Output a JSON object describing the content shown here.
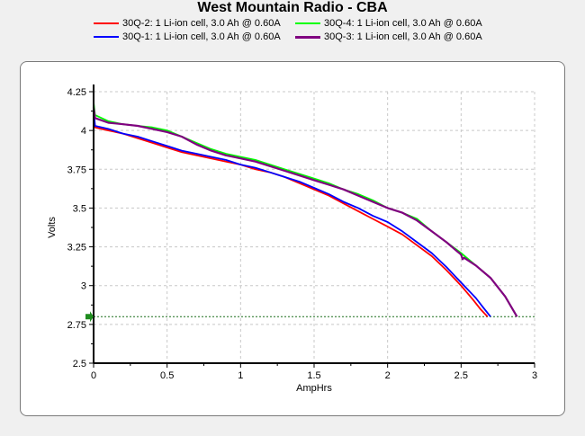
{
  "chart_data": {
    "type": "line",
    "title": "West Mountain Radio - CBA",
    "xlabel": "AmpHrs",
    "ylabel": "Volts",
    "xlim": [
      0,
      3
    ],
    "ylim": [
      2.5,
      4.25
    ],
    "x_ticks": [
      "0",
      "0.5",
      "1",
      "1.5",
      "2",
      "2.5",
      "3"
    ],
    "y_ticks": [
      "2.5",
      "2.75",
      "3",
      "3.25",
      "3.5",
      "3.75",
      "4",
      "4.25"
    ],
    "x_tick_values": [
      0,
      0.5,
      1,
      1.5,
      2,
      2.5,
      3
    ],
    "y_tick_values": [
      2.5,
      2.75,
      3,
      3.25,
      3.5,
      3.75,
      4,
      4.25
    ],
    "grid": true,
    "legend_position": "top",
    "cutoff_voltage": 2.8,
    "series": [
      {
        "name": "30Q-2: 1 Li-ion cell, 3.0 Ah @ 0.60A",
        "color": "#ff0000",
        "points": [
          [
            0,
            4.12
          ],
          [
            0.01,
            4.02
          ],
          [
            0.1,
            4.0
          ],
          [
            0.2,
            3.98
          ],
          [
            0.3,
            3.95
          ],
          [
            0.4,
            3.92
          ],
          [
            0.5,
            3.89
          ],
          [
            0.6,
            3.86
          ],
          [
            0.7,
            3.84
          ],
          [
            0.8,
            3.82
          ],
          [
            0.9,
            3.8
          ],
          [
            1.0,
            3.78
          ],
          [
            1.1,
            3.75
          ],
          [
            1.2,
            3.73
          ],
          [
            1.3,
            3.7
          ],
          [
            1.4,
            3.66
          ],
          [
            1.5,
            3.62
          ],
          [
            1.6,
            3.58
          ],
          [
            1.7,
            3.53
          ],
          [
            1.8,
            3.48
          ],
          [
            1.9,
            3.43
          ],
          [
            2.0,
            3.38
          ],
          [
            2.1,
            3.33
          ],
          [
            2.2,
            3.26
          ],
          [
            2.3,
            3.19
          ],
          [
            2.4,
            3.1
          ],
          [
            2.5,
            3.0
          ],
          [
            2.58,
            2.91
          ],
          [
            2.63,
            2.85
          ],
          [
            2.68,
            2.8
          ]
        ]
      },
      {
        "name": "30Q-1: 1 Li-ion cell, 3.0 Ah @ 0.60A",
        "color": "#0000ff",
        "points": [
          [
            0,
            4.13
          ],
          [
            0.01,
            4.03
          ],
          [
            0.1,
            4.01
          ],
          [
            0.2,
            3.98
          ],
          [
            0.3,
            3.96
          ],
          [
            0.4,
            3.93
          ],
          [
            0.5,
            3.9
          ],
          [
            0.6,
            3.87
          ],
          [
            0.7,
            3.85
          ],
          [
            0.8,
            3.83
          ],
          [
            0.9,
            3.81
          ],
          [
            1.0,
            3.78
          ],
          [
            1.1,
            3.76
          ],
          [
            1.2,
            3.73
          ],
          [
            1.3,
            3.7
          ],
          [
            1.4,
            3.67
          ],
          [
            1.5,
            3.63
          ],
          [
            1.6,
            3.59
          ],
          [
            1.7,
            3.54
          ],
          [
            1.8,
            3.5
          ],
          [
            1.9,
            3.45
          ],
          [
            2.0,
            3.41
          ],
          [
            2.1,
            3.35
          ],
          [
            2.2,
            3.28
          ],
          [
            2.3,
            3.21
          ],
          [
            2.4,
            3.12
          ],
          [
            2.5,
            3.02
          ],
          [
            2.6,
            2.92
          ],
          [
            2.65,
            2.86
          ],
          [
            2.7,
            2.8
          ]
        ]
      },
      {
        "name": "30Q-4: 1 Li-ion cell, 3.0 Ah @ 0.60A",
        "color": "#00ff00",
        "points": [
          [
            0,
            4.18
          ],
          [
            0.01,
            4.1
          ],
          [
            0.1,
            4.06
          ],
          [
            0.2,
            4.04
          ],
          [
            0.3,
            4.03
          ],
          [
            0.4,
            4.02
          ],
          [
            0.5,
            4.0
          ],
          [
            0.6,
            3.96
          ],
          [
            0.7,
            3.92
          ],
          [
            0.8,
            3.88
          ],
          [
            0.9,
            3.85
          ],
          [
            1.0,
            3.83
          ],
          [
            1.1,
            3.81
          ],
          [
            1.2,
            3.78
          ],
          [
            1.3,
            3.75
          ],
          [
            1.4,
            3.72
          ],
          [
            1.5,
            3.69
          ],
          [
            1.6,
            3.66
          ],
          [
            1.7,
            3.62
          ],
          [
            1.8,
            3.59
          ],
          [
            1.9,
            3.55
          ],
          [
            2.0,
            3.5
          ],
          [
            2.1,
            3.47
          ],
          [
            2.2,
            3.43
          ],
          [
            2.3,
            3.35
          ],
          [
            2.4,
            3.28
          ],
          [
            2.5,
            3.21
          ],
          [
            2.6,
            3.13
          ],
          [
            2.7,
            3.05
          ],
          [
            2.8,
            2.93
          ],
          [
            2.88,
            2.8
          ]
        ]
      },
      {
        "name": "30Q-3: 1 Li-ion cell, 3.0 Ah @ 0.60A",
        "color": "#800080",
        "points": [
          [
            0,
            4.15
          ],
          [
            0.01,
            4.08
          ],
          [
            0.1,
            4.05
          ],
          [
            0.2,
            4.04
          ],
          [
            0.3,
            4.03
          ],
          [
            0.4,
            4.01
          ],
          [
            0.5,
            3.99
          ],
          [
            0.6,
            3.96
          ],
          [
            0.7,
            3.91
          ],
          [
            0.8,
            3.87
          ],
          [
            0.9,
            3.84
          ],
          [
            1.0,
            3.82
          ],
          [
            1.1,
            3.8
          ],
          [
            1.2,
            3.77
          ],
          [
            1.3,
            3.74
          ],
          [
            1.4,
            3.71
          ],
          [
            1.5,
            3.68
          ],
          [
            1.6,
            3.65
          ],
          [
            1.7,
            3.62
          ],
          [
            1.8,
            3.58
          ],
          [
            1.9,
            3.54
          ],
          [
            2.0,
            3.5
          ],
          [
            2.1,
            3.47
          ],
          [
            2.2,
            3.42
          ],
          [
            2.3,
            3.35
          ],
          [
            2.4,
            3.28
          ],
          [
            2.5,
            3.2
          ],
          [
            2.51,
            3.17
          ],
          [
            2.52,
            3.18
          ],
          [
            2.6,
            3.13
          ],
          [
            2.7,
            3.05
          ],
          [
            2.8,
            2.93
          ],
          [
            2.88,
            2.8
          ]
        ]
      }
    ]
  }
}
